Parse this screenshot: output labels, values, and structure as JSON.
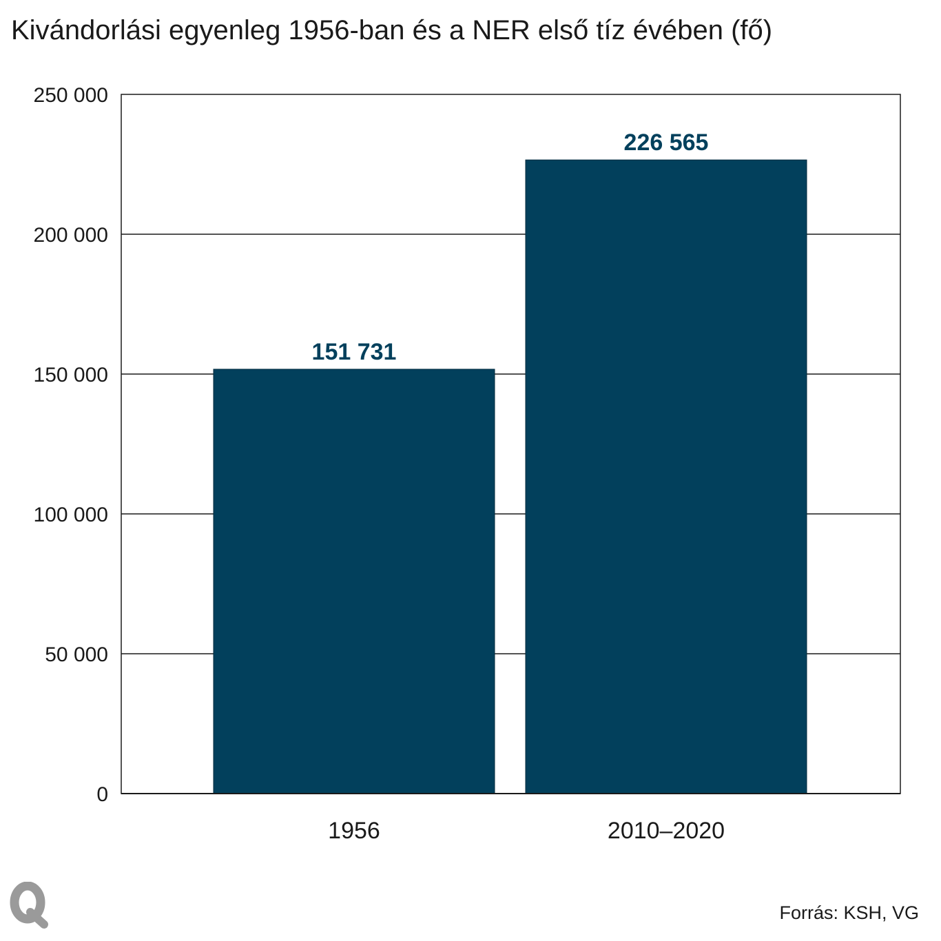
{
  "chart_data": {
    "type": "bar",
    "title": "Kivándorlási egyenleg 1956-ban és a NER első tíz évében (fő)",
    "categories": [
      "1956",
      "2010–2020"
    ],
    "values": [
      151731,
      226565
    ],
    "value_labels": [
      "151 731",
      "226 565"
    ],
    "ylim": [
      0,
      250000
    ],
    "yticks": [
      0,
      50000,
      100000,
      150000,
      200000,
      250000
    ],
    "ytick_labels": [
      "0",
      "50 000",
      "100 000",
      "150 000",
      "200 000",
      "250 000"
    ],
    "grid": true,
    "bar_color": "#02405c",
    "label_color": "#02405c"
  },
  "logo_text": "Q",
  "source": "Forrás: KSH, VG"
}
